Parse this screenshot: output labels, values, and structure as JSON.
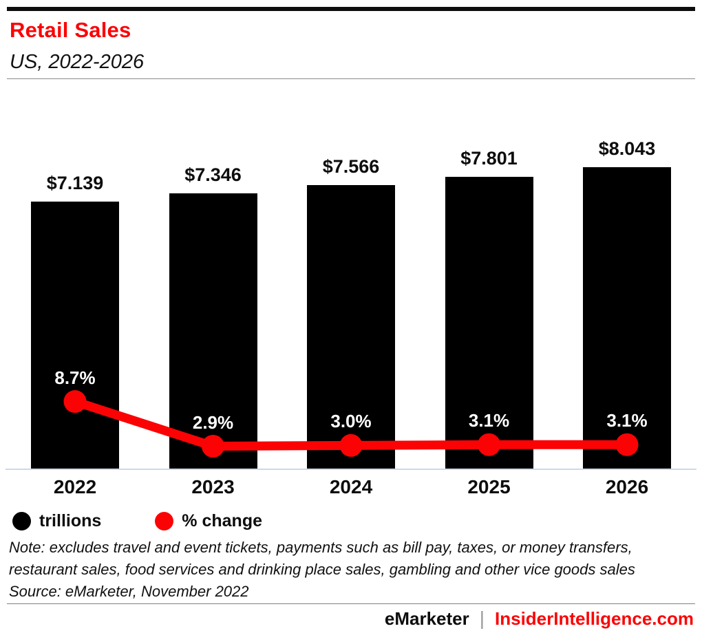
{
  "header": {
    "title": "Retail Sales",
    "subtitle": "US, 2022-2026"
  },
  "theme": {
    "accent_red": "#fb0304",
    "bar_black": "#000000",
    "axis_line_color": "#cdd9e8",
    "rule_gray": "#8a8a8a"
  },
  "chart_data": {
    "type": "bar",
    "combo": "bar+line",
    "title": "Retail Sales",
    "subtitle": "US, 2022-2026",
    "categories": [
      "2022",
      "2023",
      "2024",
      "2025",
      "2026"
    ],
    "series": [
      {
        "name": "trillions",
        "type": "bar",
        "color": "#000000",
        "values": [
          7.139,
          7.346,
          7.566,
          7.801,
          8.043
        ],
        "labels": [
          "$7.139",
          "$7.346",
          "$7.566",
          "$7.801",
          "$8.043"
        ],
        "unit": "trillions USD"
      },
      {
        "name": "% change",
        "type": "line",
        "color": "#fb0304",
        "values": [
          8.7,
          2.9,
          3.0,
          3.1,
          3.1
        ],
        "labels": [
          "8.7%",
          "2.9%",
          "3.0%",
          "3.1%",
          "3.1%"
        ],
        "unit": "percent"
      }
    ],
    "bar_axis_range": [
      0,
      8.5
    ],
    "line_axis_range": [
      0,
      51
    ],
    "grid": false,
    "value_labels_shown": true,
    "legend_position": "bottom-left",
    "legend": [
      {
        "label": "trillions",
        "color": "#000000"
      },
      {
        "label": "% change",
        "color": "#fb0304"
      }
    ]
  },
  "notes": {
    "note": "Note: excludes travel and event tickets, payments such as bill pay, taxes, or money transfers, restaurant sales, food services and drinking place sales, gambling and other vice goods sales",
    "source": "Source: eMarketer, November 2022"
  },
  "footer": {
    "brand_left": "eMarketer",
    "separator": "|",
    "brand_right": "InsiderIntelligence.com"
  }
}
